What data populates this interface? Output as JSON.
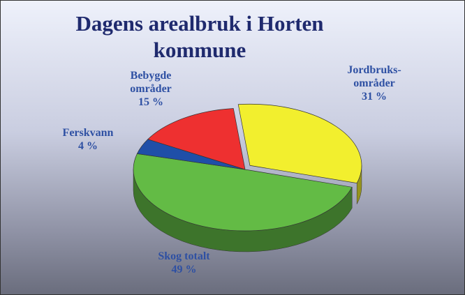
{
  "chart_data": {
    "type": "pie3d",
    "title": "Dagens arealbruk i Horten kommune",
    "categories": [
      "Jordbruks-områder",
      "Skog totalt",
      "Ferskvann",
      "Bebygde områder"
    ],
    "values": [
      31,
      49,
      4,
      15
    ],
    "value_labels": [
      "31 %",
      "49 %",
      "4 %",
      "15 %"
    ],
    "colors": [
      "#f2ef2e",
      "#63bb45",
      "#1f4fa8",
      "#ee3030"
    ]
  }
}
